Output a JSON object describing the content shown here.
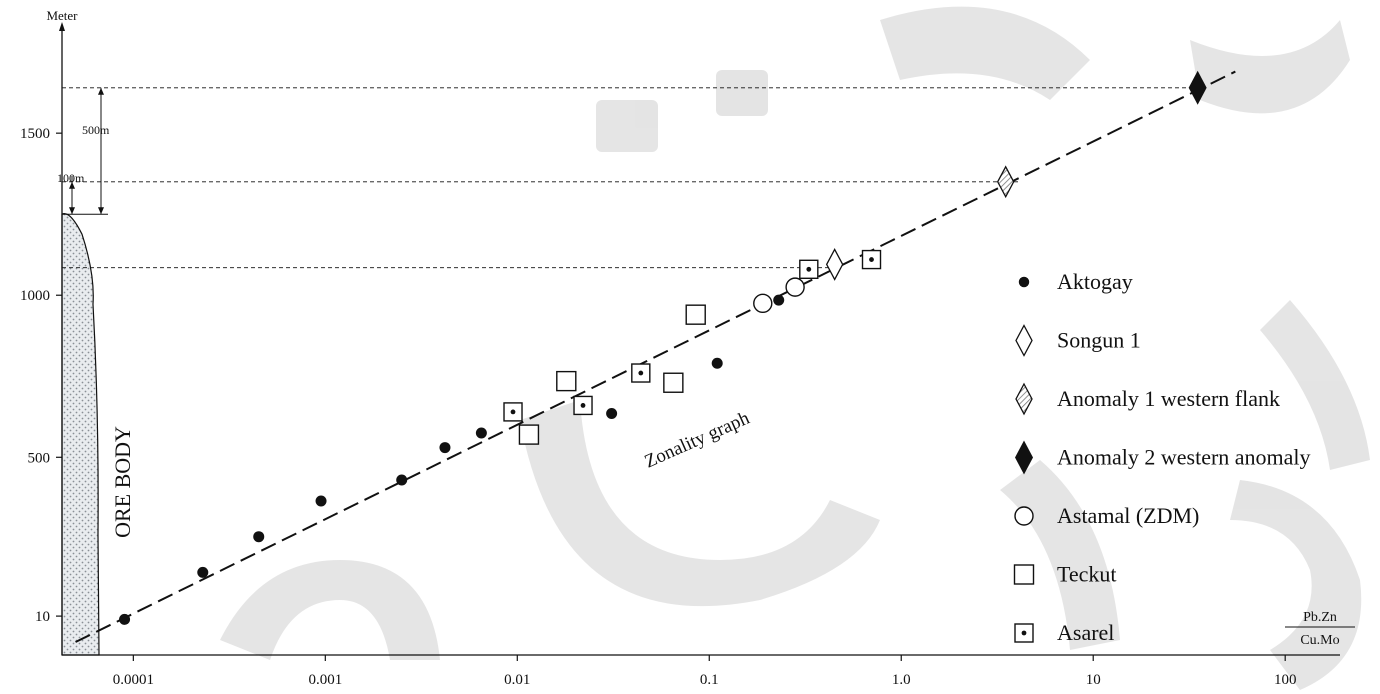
{
  "chart_data": {
    "type": "scatter",
    "title": "",
    "xlabel": "Pb.Zn / Cu.Mo",
    "x_label_numerator": "Pb.Zn",
    "x_label_denominator": "Cu.Mo",
    "ylabel": "Meter",
    "x_scale": "log",
    "xlim": [
      4.25e-05,
      270
    ],
    "ylim": [
      -110,
      1880
    ],
    "x_ticks": [
      0.0001,
      0.001,
      0.01,
      0.1,
      1.0,
      10,
      100
    ],
    "x_tick_labels": [
      "0.0001",
      "0.001",
      "0.01",
      "0.1",
      "1.0",
      "10",
      "100"
    ],
    "y_ticks": [
      10,
      500,
      1000,
      1500
    ],
    "y_tick_labels": [
      "10",
      "500",
      "1000",
      "1500"
    ],
    "grid": false,
    "legend_position": "right",
    "series": [
      {
        "name": "Aktogay",
        "marker": "filled-circle",
        "points": [
          [
            9e-05,
            0
          ],
          [
            0.00023,
            145
          ],
          [
            0.00045,
            255
          ],
          [
            0.00095,
            365
          ],
          [
            0.0025,
            430
          ],
          [
            0.0042,
            530
          ],
          [
            0.0065,
            575
          ],
          [
            0.031,
            635
          ],
          [
            0.11,
            790
          ],
          [
            0.23,
            985
          ]
        ]
      },
      {
        "name": "Songun 1",
        "marker": "open-diamond",
        "points": [
          [
            0.45,
            1095
          ]
        ]
      },
      {
        "name": "Anomaly 1 western flank",
        "marker": "hatched-diamond",
        "points": [
          [
            3.5,
            1350
          ]
        ]
      },
      {
        "name": "Anomaly 2 western anomaly",
        "marker": "filled-diamond",
        "points": [
          [
            35,
            1640
          ]
        ]
      },
      {
        "name": "Astamal (ZDM)",
        "marker": "open-circle",
        "points": [
          [
            0.19,
            975
          ],
          [
            0.28,
            1025
          ]
        ]
      },
      {
        "name": "Teckut",
        "marker": "open-square",
        "points": [
          [
            0.0115,
            570
          ],
          [
            0.018,
            735
          ],
          [
            0.065,
            730
          ],
          [
            0.085,
            940
          ]
        ]
      },
      {
        "name": "Asarel",
        "marker": "dotted-square",
        "points": [
          [
            0.0095,
            640
          ],
          [
            0.022,
            660
          ],
          [
            0.044,
            760
          ],
          [
            0.33,
            1080
          ],
          [
            0.7,
            1110
          ]
        ]
      }
    ],
    "trend_line": {
      "points": [
        [
          5e-05,
          -70
        ],
        [
          55,
          1690
        ]
      ]
    },
    "annotations": {
      "trend_label": "Zonality graph",
      "ore_body_label": "ORE BODY",
      "span_500": "500m",
      "span_100": "100m",
      "reference_levels": [
        1640,
        1350,
        1085
      ]
    }
  },
  "colors": {
    "ink": "#111111",
    "ore_fill": "#e9ecef",
    "ore_dot": "#8a9096",
    "watermark": "#d9d9d9"
  }
}
